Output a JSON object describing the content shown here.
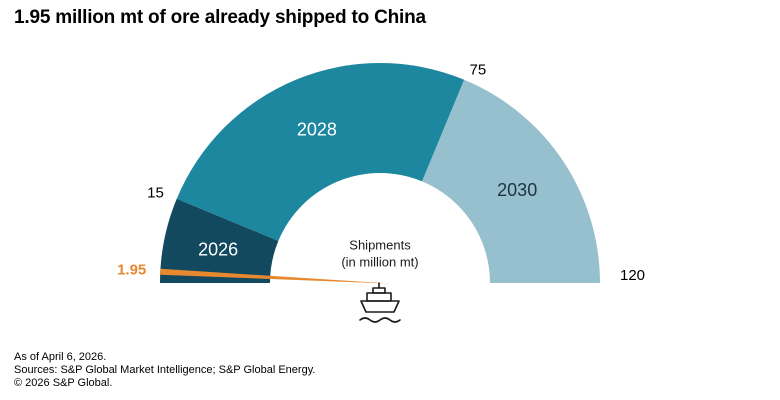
{
  "title": "1.95 million mt of ore already shipped to China",
  "chart_data": {
    "type": "gauge",
    "min": 0,
    "max": 120,
    "segments": [
      {
        "label": "2026",
        "from": 0,
        "to": 15,
        "color": "#12495e",
        "text_color": "#ffffff"
      },
      {
        "label": "2028",
        "from": 15,
        "to": 75,
        "color": "#1c879e",
        "text_color": "#ffffff"
      },
      {
        "label": "2030",
        "from": 75,
        "to": 120,
        "color": "#97c0ce",
        "text_color": "#1e3340"
      }
    ],
    "tick_labels": [
      "15",
      "75",
      "120"
    ],
    "needle": {
      "value": 1.95,
      "label": "1.95",
      "color": "#e8882f"
    },
    "center_label": [
      "Shipments",
      "(in million mt)"
    ]
  },
  "footer": {
    "as_of": "As of April 6, 2026.",
    "sources": "Sources: S&P Global Market Intelligence; S&P Global Energy.",
    "copyright": "© 2026 S&P Global."
  }
}
